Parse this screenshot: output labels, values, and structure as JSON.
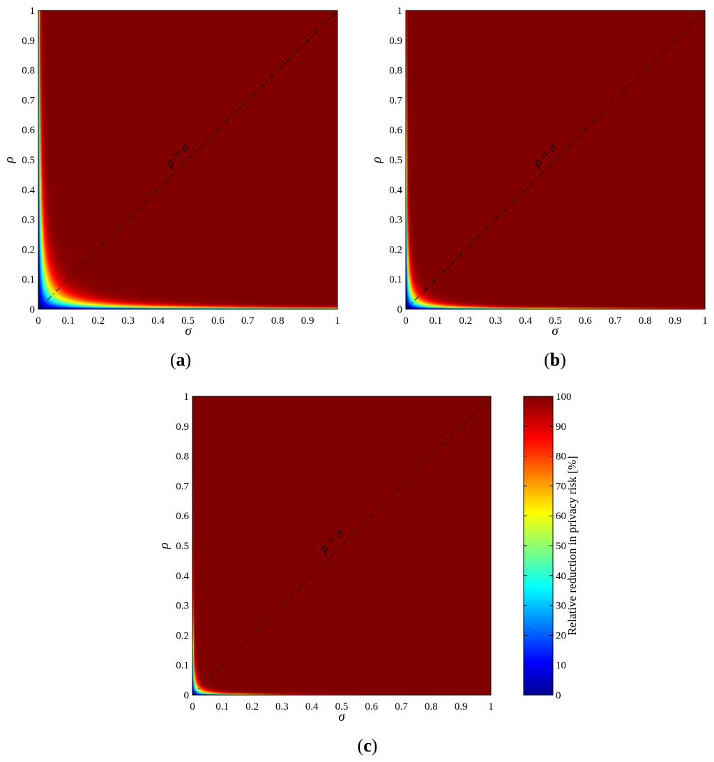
{
  "chart_data": [
    {
      "type": "heatmap",
      "panel": "a",
      "panel_label": "a",
      "xlabel": "σ",
      "ylabel": "ρ",
      "xlim": [
        0,
        1
      ],
      "ylim": [
        0,
        1
      ],
      "x_ticks": [
        "0",
        "0.1",
        "0.2",
        "0.3",
        "0.4",
        "0.5",
        "0.6",
        "0.7",
        "0.8",
        "0.9",
        "1"
      ],
      "y_ticks": [
        "0",
        "0.1",
        "0.2",
        "0.3",
        "0.4",
        "0.5",
        "0.6",
        "0.7",
        "0.8",
        "0.9",
        "1"
      ],
      "diagonal_label": "ρ = σ",
      "decay_scale": 0.055,
      "samples": [
        {
          "sigma": 0.0,
          "rho": 0.0,
          "value": 0
        },
        {
          "sigma": 0.02,
          "rho": 0.02,
          "value": 25
        },
        {
          "sigma": 0.05,
          "rho": 0.05,
          "value": 60
        },
        {
          "sigma": 0.1,
          "rho": 0.1,
          "value": 80
        },
        {
          "sigma": 0.17,
          "rho": 0.17,
          "value": 92
        },
        {
          "sigma": 0.0,
          "rho": 0.4,
          "value": 95
        },
        {
          "sigma": 0.4,
          "rho": 0.0,
          "value": 95
        },
        {
          "sigma": 0.5,
          "rho": 0.5,
          "value": 100
        }
      ]
    },
    {
      "type": "heatmap",
      "panel": "b",
      "panel_label": "b",
      "xlabel": "σ",
      "ylabel": "ρ",
      "xlim": [
        0,
        1
      ],
      "ylim": [
        0,
        1
      ],
      "x_ticks": [
        "0",
        "0.1",
        "0.2",
        "0.3",
        "0.4",
        "0.5",
        "0.6",
        "0.7",
        "0.8",
        "0.9",
        "1"
      ],
      "y_ticks": [
        "0",
        "0.1",
        "0.2",
        "0.3",
        "0.4",
        "0.5",
        "0.6",
        "0.7",
        "0.8",
        "0.9",
        "1"
      ],
      "diagonal_label": "ρ = σ",
      "decay_scale": 0.034,
      "samples": [
        {
          "sigma": 0.0,
          "rho": 0.0,
          "value": 0
        },
        {
          "sigma": 0.02,
          "rho": 0.02,
          "value": 40
        },
        {
          "sigma": 0.05,
          "rho": 0.05,
          "value": 75
        },
        {
          "sigma": 0.1,
          "rho": 0.1,
          "value": 92
        },
        {
          "sigma": 0.0,
          "rho": 0.25,
          "value": 96
        },
        {
          "sigma": 0.25,
          "rho": 0.0,
          "value": 96
        },
        {
          "sigma": 0.5,
          "rho": 0.5,
          "value": 100
        }
      ]
    },
    {
      "type": "heatmap",
      "panel": "c",
      "panel_label": "c",
      "xlabel": "σ",
      "ylabel": "ρ",
      "xlim": [
        0,
        1
      ],
      "ylim": [
        0,
        1
      ],
      "x_ticks": [
        "0",
        "0.1",
        "0.2",
        "0.3",
        "0.4",
        "0.5",
        "0.6",
        "0.7",
        "0.8",
        "0.9",
        "1"
      ],
      "y_ticks": [
        "0",
        "0.1",
        "0.2",
        "0.3",
        "0.4",
        "0.5",
        "0.6",
        "0.7",
        "0.8",
        "0.9",
        "1"
      ],
      "diagonal_label": "ρ = σ",
      "decay_scale": 0.02,
      "samples": [
        {
          "sigma": 0.0,
          "rho": 0.0,
          "value": 0
        },
        {
          "sigma": 0.01,
          "rho": 0.01,
          "value": 40
        },
        {
          "sigma": 0.03,
          "rho": 0.03,
          "value": 80
        },
        {
          "sigma": 0.05,
          "rho": 0.05,
          "value": 92
        },
        {
          "sigma": 0.0,
          "rho": 0.15,
          "value": 96
        },
        {
          "sigma": 0.15,
          "rho": 0.0,
          "value": 96
        },
        {
          "sigma": 0.5,
          "rho": 0.5,
          "value": 100
        }
      ]
    }
  ],
  "colorbar": {
    "label": "Relative reduction in privacy risk [%]",
    "range": [
      0,
      100
    ],
    "ticks": [
      "0",
      "10",
      "20",
      "30",
      "40",
      "50",
      "60",
      "70",
      "80",
      "90",
      "100"
    ],
    "colormap": "jet"
  },
  "colors": {
    "jet": [
      "#00008f",
      "#0000ff",
      "#00ffff",
      "#ffff00",
      "#ff0000",
      "#800000"
    ],
    "diagonal_line": "#000000"
  }
}
